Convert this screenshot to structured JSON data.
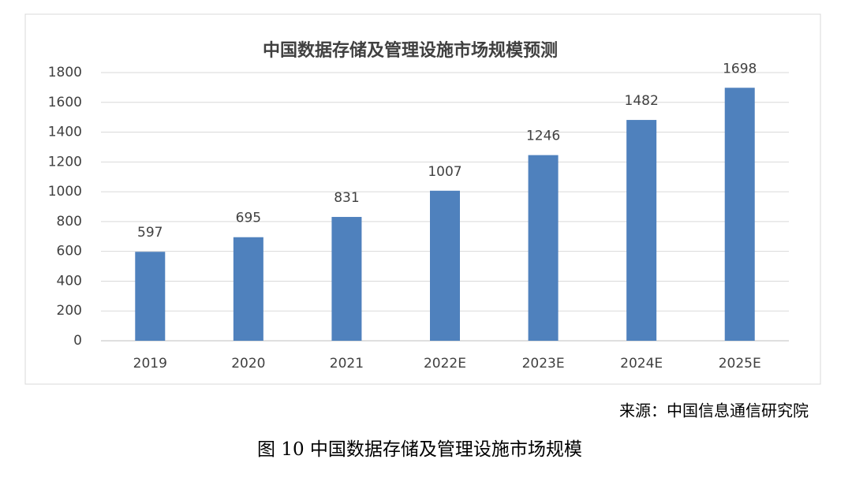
{
  "chart_data": {
    "type": "bar",
    "title": "中国数据存储及管理设施市场规模预测",
    "categories": [
      "2019",
      "2020",
      "2021",
      "2022E",
      "2023E",
      "2024E",
      "2025E"
    ],
    "values": [
      597,
      695,
      831,
      1007,
      1246,
      1482,
      1698
    ],
    "color": "#4f81bd",
    "ylim": [
      0,
      1800
    ],
    "yticks": [
      0,
      200,
      400,
      600,
      800,
      1000,
      1200,
      1400,
      1600,
      1800
    ],
    "grid": true
  },
  "source": "来源：中国信息通信研究院",
  "caption": "图 10 中国数据存储及管理设施市场规模"
}
